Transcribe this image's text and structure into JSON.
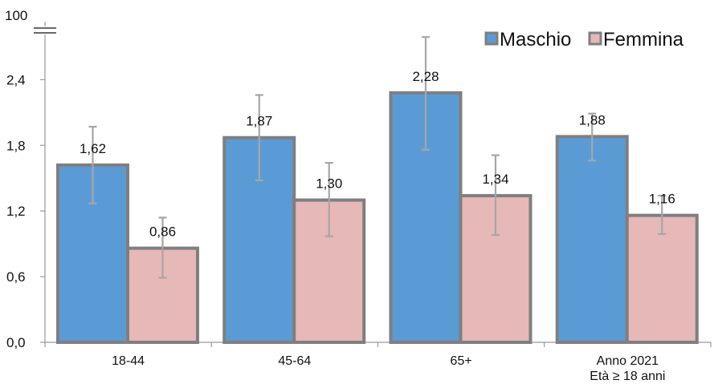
{
  "chart_data": {
    "type": "bar",
    "categories": [
      "18-44",
      "45-64",
      "65+",
      "Anno 2021\nEtà ≥ 18 anni"
    ],
    "series": [
      {
        "name": "Maschio",
        "color": "#5B9BD5",
        "values": [
          1.62,
          1.87,
          2.28,
          1.88
        ],
        "value_labels": [
          "1,62",
          "1,87",
          "2,28",
          "1,88"
        ],
        "error_low": [
          1.27,
          1.48,
          1.76,
          1.66
        ],
        "error_high": [
          1.97,
          2.26,
          2.79,
          2.09
        ]
      },
      {
        "name": "Femmina",
        "color": "#E6B8B7",
        "values": [
          0.86,
          1.3,
          1.34,
          1.16
        ],
        "value_labels": [
          "0,86",
          "1,30",
          "1,34",
          "1,16"
        ],
        "error_low": [
          0.59,
          0.97,
          0.98,
          0.99
        ],
        "error_high": [
          1.14,
          1.64,
          1.71,
          1.34
        ]
      }
    ],
    "ylim": [
      0,
      3
    ],
    "yticks": [
      0,
      0.6,
      1.2,
      1.8,
      2.4
    ],
    "ytick_labels": [
      "0,0",
      "0,6",
      "1,2",
      "1,8",
      "2,4"
    ],
    "y_break_label": "100",
    "title": "",
    "xlabel": "",
    "ylabel": "",
    "legend_position": "top-right",
    "grid": false
  }
}
